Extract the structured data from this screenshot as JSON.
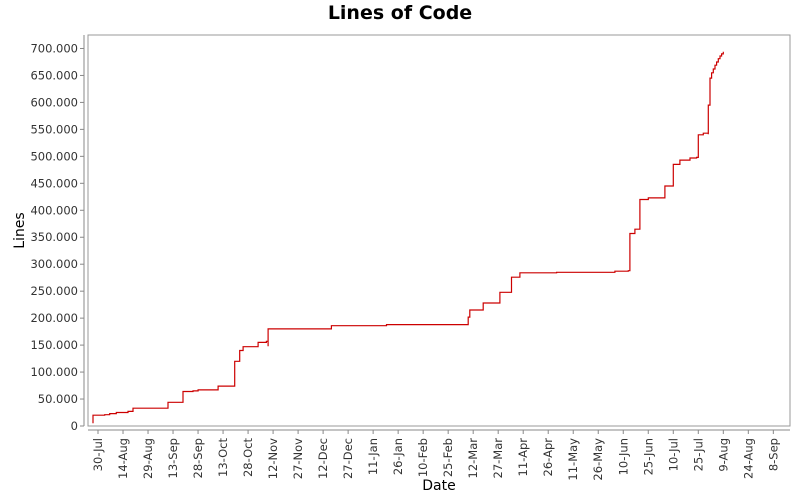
{
  "chart_data": {
    "type": "line",
    "title": "Lines of Code",
    "xlabel": "Date",
    "ylabel": "Lines",
    "ylim": [
      0,
      725000
    ],
    "y_ticks": [
      {
        "value": 0,
        "label": "0"
      },
      {
        "value": 50000,
        "label": "50.000"
      },
      {
        "value": 100000,
        "label": "100.000"
      },
      {
        "value": 150000,
        "label": "150.000"
      },
      {
        "value": 200000,
        "label": "200.000"
      },
      {
        "value": 250000,
        "label": "250.000"
      },
      {
        "value": 300000,
        "label": "300.000"
      },
      {
        "value": 350000,
        "label": "350.000"
      },
      {
        "value": 400000,
        "label": "400.000"
      },
      {
        "value": 450000,
        "label": "450.000"
      },
      {
        "value": 500000,
        "label": "500.000"
      },
      {
        "value": 550000,
        "label": "550.000"
      },
      {
        "value": 600000,
        "label": "600.000"
      },
      {
        "value": 650000,
        "label": "650.000"
      },
      {
        "value": 700000,
        "label": "700.000"
      }
    ],
    "x_ticks": [
      "30-Jul",
      "14-Aug",
      "29-Aug",
      "13-Sep",
      "28-Sep",
      "13-Oct",
      "28-Oct",
      "12-Nov",
      "27-Nov",
      "12-Dec",
      "27-Dec",
      "11-Jan",
      "26-Jan",
      "10-Feb",
      "25-Feb",
      "12-Mar",
      "27-Mar",
      "11-Apr",
      "26-Apr",
      "11-May",
      "26-May",
      "10-Jun",
      "25-Jun",
      "10-Jul",
      "25-Jul",
      "9-Aug",
      "24-Aug",
      "8-Sep"
    ],
    "x_tick_interval_days": 15,
    "xlim_days": [
      -6,
      415
    ],
    "grid": false,
    "line_style": "step",
    "series": [
      {
        "color": "#cc0000",
        "points": [
          [
            -3,
            5000
          ],
          [
            -3,
            20000
          ],
          [
            4,
            21000
          ],
          [
            7,
            23000
          ],
          [
            11,
            25000
          ],
          [
            18,
            27000
          ],
          [
            21,
            33000
          ],
          [
            42,
            34000
          ],
          [
            42,
            44000
          ],
          [
            51,
            45000
          ],
          [
            51,
            64000
          ],
          [
            57,
            65000
          ],
          [
            60,
            67000
          ],
          [
            72,
            67500
          ],
          [
            72,
            74000
          ],
          [
            82,
            75000
          ],
          [
            82,
            120000
          ],
          [
            85,
            122000
          ],
          [
            85,
            140000
          ],
          [
            87,
            142000
          ],
          [
            87,
            147000
          ],
          [
            96,
            148000
          ],
          [
            96,
            155000
          ],
          [
            101,
            157000
          ],
          [
            102,
            148000
          ],
          [
            102,
            180000
          ],
          [
            140,
            181000
          ],
          [
            140,
            186000
          ],
          [
            173,
            187000
          ],
          [
            173,
            188000
          ],
          [
            222,
            189000
          ],
          [
            222,
            202000
          ],
          [
            223,
            215000
          ],
          [
            231,
            215000
          ],
          [
            231,
            228000
          ],
          [
            241,
            229000
          ],
          [
            241,
            248000
          ],
          [
            248,
            249000
          ],
          [
            248,
            276000
          ],
          [
            253,
            278000
          ],
          [
            253,
            284000
          ],
          [
            275,
            285000
          ],
          [
            310,
            285000
          ],
          [
            310,
            287000
          ],
          [
            318,
            288000
          ],
          [
            319,
            290000
          ],
          [
            319,
            357000
          ],
          [
            322,
            358000
          ],
          [
            322,
            365000
          ],
          [
            325,
            366000
          ],
          [
            325,
            420000
          ],
          [
            330,
            421000
          ],
          [
            330,
            423000
          ],
          [
            340,
            424000
          ],
          [
            340,
            445000
          ],
          [
            345,
            446000
          ],
          [
            345,
            485000
          ],
          [
            349,
            486000
          ],
          [
            349,
            493000
          ],
          [
            355,
            494000
          ],
          [
            355,
            497000
          ],
          [
            359,
            498000
          ],
          [
            360,
            515000
          ],
          [
            360,
            540000
          ],
          [
            363,
            543000
          ],
          [
            366,
            541000
          ],
          [
            366,
            595000
          ],
          [
            367,
            625000
          ],
          [
            367,
            645000
          ],
          [
            368,
            655000
          ],
          [
            369,
            662000
          ],
          [
            370,
            669000
          ],
          [
            371,
            675000
          ],
          [
            372,
            681000
          ],
          [
            373,
            686000
          ],
          [
            374,
            690000
          ],
          [
            375,
            694000
          ]
        ]
      }
    ]
  }
}
